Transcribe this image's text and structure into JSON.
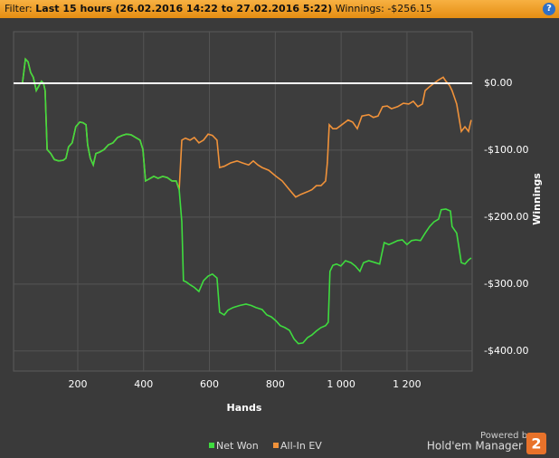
{
  "header": {
    "filter_label": "Filter:",
    "filter_value": "Last 15 hours (26.02.2016 14:22 to 27.02.2016 5:22)",
    "winnings_label": "Winnings:",
    "winnings_value": "-$256.15",
    "help_icon": "?"
  },
  "branding": {
    "powered_by": "Powered by",
    "product": "Hold'em Manager",
    "badge": "2"
  },
  "chart_data": {
    "type": "line",
    "x_label": "Hands",
    "y_label": "Winnings",
    "xlim": [
      5,
      1398
    ],
    "ylim": [
      -430,
      77
    ],
    "xticks": [
      200,
      400,
      600,
      800,
      {
        "value": 1000,
        "label": "1 000"
      },
      {
        "value": 1200,
        "label": "1 200"
      }
    ],
    "yticks": [
      {
        "value": 0,
        "label": "$0.00"
      },
      {
        "value": -100,
        "label": "-$100.00"
      },
      {
        "value": -200,
        "label": "-$200.00"
      },
      {
        "value": -300,
        "label": "-$300.00"
      },
      {
        "value": -400,
        "label": "-$400.00"
      }
    ],
    "grid": true,
    "series": [
      {
        "name": "All-In EV",
        "color": "#f0923a",
        "x": [
          5,
          32,
          41,
          49,
          57,
          65,
          74,
          82,
          90,
          96,
          101,
          107,
          118,
          129,
          142,
          156,
          164,
          172,
          183,
          194,
          206,
          216,
          225,
          230,
          238,
          247,
          255,
          266,
          280,
          293,
          307,
          321,
          335,
          348,
          362,
          376,
          389,
          398,
          406,
          417,
          431,
          444,
          458,
          472,
          486,
          499,
          508,
          516,
          527,
          541,
          554,
          568,
          582,
          596,
          609,
          623,
          631,
          645,
          664,
          684,
          700,
          719,
          733,
          747,
          760,
          780,
          802,
          821,
          843,
          862,
          878,
          898,
          911,
          925,
          939,
          953,
          958,
          964,
          975,
          986,
          1002,
          1021,
          1035,
          1049,
          1063,
          1084,
          1098,
          1112,
          1126,
          1140,
          1153,
          1172,
          1189,
          1205,
          1219,
          1233,
          1247,
          1255,
          1269,
          1282,
          1296,
          1310,
          1318,
          1329,
          1337,
          1351,
          1365,
          1376,
          1387,
          1395
        ],
        "values": [
          0,
          0,
          36,
          32,
          16,
          9,
          -11,
          -4,
          3,
          0,
          -11,
          -99,
          -105,
          -114,
          -116,
          -115,
          -112,
          -95,
          -89,
          -65,
          -58,
          -59,
          -62,
          -92,
          -112,
          -122,
          -105,
          -103,
          -99,
          -92,
          -89,
          -81,
          -78,
          -76,
          -77,
          -81,
          -85,
          -99,
          -146,
          -143,
          -139,
          -142,
          -139,
          -141,
          -146,
          -146,
          -159,
          -85,
          -82,
          -85,
          -81,
          -89,
          -85,
          -76,
          -78,
          -85,
          -126,
          -124,
          -119,
          -116,
          -119,
          -122,
          -116,
          -122,
          -126,
          -130,
          -139,
          -146,
          -159,
          -170,
          -166,
          -162,
          -159,
          -153,
          -153,
          -146,
          -119,
          -62,
          -68,
          -68,
          -62,
          -55,
          -58,
          -68,
          -49,
          -47,
          -51,
          -49,
          -35,
          -34,
          -38,
          -35,
          -30,
          -31,
          -27,
          -35,
          -31,
          -11,
          -5,
          0,
          5,
          9,
          3,
          -3,
          -11,
          -31,
          -72,
          -65,
          -72,
          -55
        ]
      },
      {
        "name": "Net Won",
        "color": "#3fdc3f",
        "x": [
          5,
          32,
          41,
          49,
          57,
          65,
          74,
          82,
          90,
          96,
          101,
          107,
          118,
          129,
          142,
          156,
          164,
          172,
          183,
          194,
          206,
          216,
          225,
          230,
          238,
          247,
          255,
          266,
          280,
          293,
          307,
          321,
          335,
          348,
          362,
          376,
          389,
          398,
          406,
          417,
          431,
          444,
          458,
          472,
          486,
          499,
          508,
          516,
          521,
          530,
          541,
          554,
          568,
          582,
          596,
          609,
          623,
          631,
          645,
          656,
          672,
          692,
          711,
          727,
          741,
          760,
          774,
          788,
          802,
          815,
          829,
          843,
          857,
          870,
          884,
          898,
          911,
          925,
          939,
          953,
          961,
          966,
          975,
          986,
          999,
          1013,
          1030,
          1043,
          1057,
          1068,
          1084,
          1104,
          1117,
          1131,
          1145,
          1159,
          1172,
          1186,
          1200,
          1214,
          1227,
          1241,
          1255,
          1269,
          1282,
          1296,
          1304,
          1318,
          1332,
          1337,
          1351,
          1365,
          1376,
          1387,
          1395
        ],
        "values": [
          0,
          0,
          36,
          32,
          16,
          9,
          -11,
          -4,
          3,
          0,
          -11,
          -99,
          -105,
          -114,
          -116,
          -115,
          -112,
          -95,
          -89,
          -65,
          -58,
          -59,
          -62,
          -92,
          -112,
          -122,
          -105,
          -103,
          -99,
          -92,
          -89,
          -81,
          -78,
          -76,
          -77,
          -81,
          -85,
          -99,
          -146,
          -143,
          -139,
          -142,
          -139,
          -141,
          -146,
          -146,
          -159,
          -207,
          -295,
          -297,
          -301,
          -305,
          -311,
          -295,
          -288,
          -285,
          -291,
          -342,
          -346,
          -339,
          -335,
          -332,
          -330,
          -332,
          -335,
          -338,
          -346,
          -349,
          -355,
          -362,
          -365,
          -369,
          -382,
          -389,
          -388,
          -380,
          -376,
          -370,
          -365,
          -362,
          -357,
          -281,
          -272,
          -270,
          -273,
          -265,
          -268,
          -273,
          -281,
          -268,
          -265,
          -268,
          -270,
          -238,
          -241,
          -238,
          -235,
          -234,
          -241,
          -235,
          -234,
          -235,
          -224,
          -214,
          -207,
          -203,
          -189,
          -188,
          -191,
          -214,
          -224,
          -268,
          -270,
          -264,
          -261
        ]
      }
    ]
  }
}
